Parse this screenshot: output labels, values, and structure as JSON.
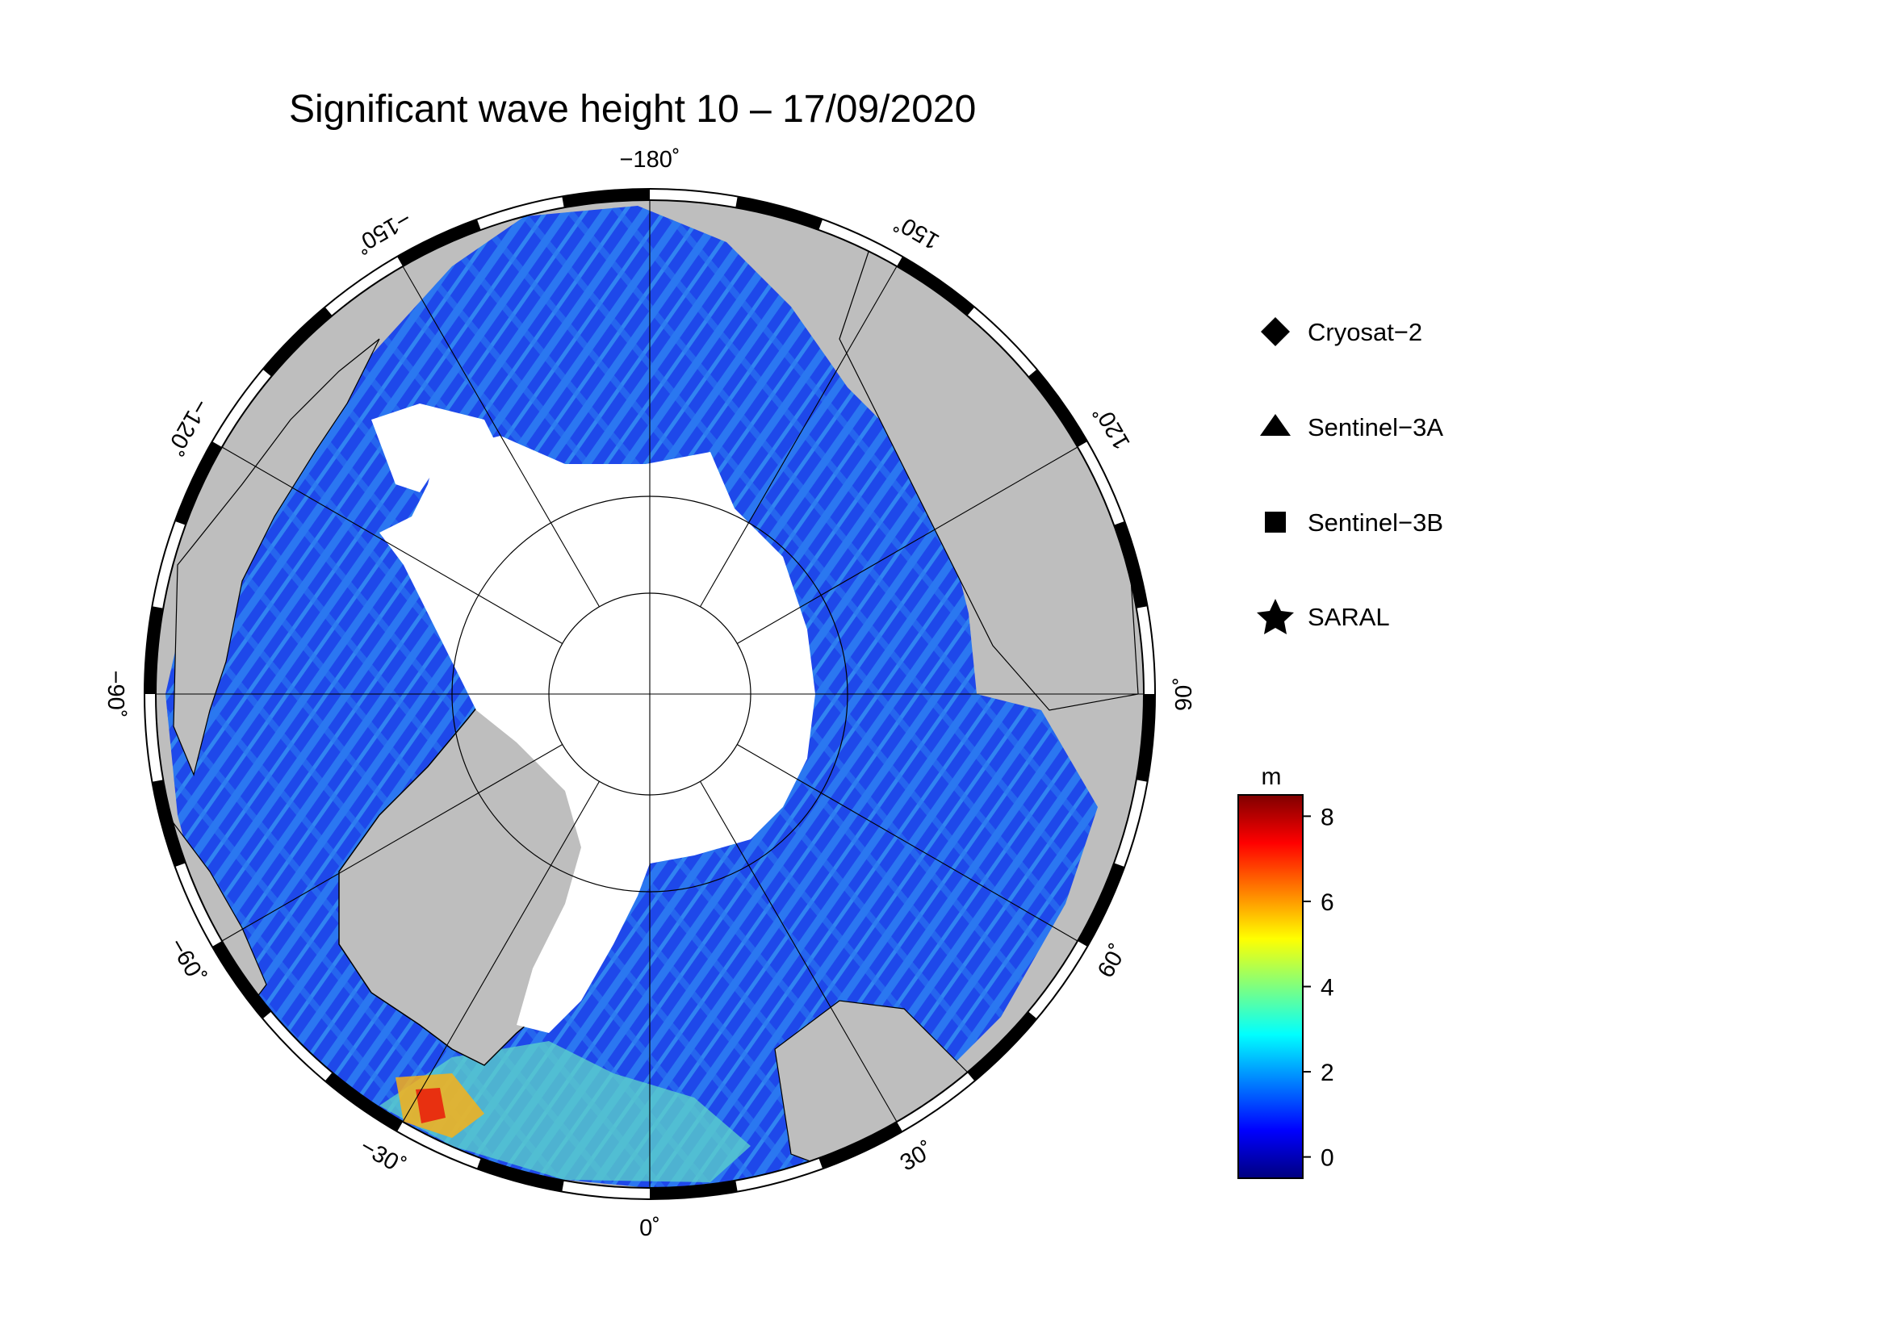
{
  "title": "Significant wave height 10 – 17/09/2020",
  "longitude_labels": [
    {
      "value": 0,
      "text": "0˚"
    },
    {
      "value": 30,
      "text": "30˚"
    },
    {
      "value": 60,
      "text": "60˚"
    },
    {
      "value": 90,
      "text": "90˚"
    },
    {
      "value": 120,
      "text": "120˚"
    },
    {
      "value": 150,
      "text": "150˚"
    },
    {
      "value": -180,
      "text": "−180˚"
    },
    {
      "value": -150,
      "text": "−150˚"
    },
    {
      "value": -120,
      "text": "−120˚"
    },
    {
      "value": -90,
      "text": "−90˚"
    },
    {
      "value": -60,
      "text": "−60˚"
    },
    {
      "value": -30,
      "text": "−30˚"
    }
  ],
  "legend": [
    {
      "label": "Cryosat−2",
      "marker": "diamond-icon"
    },
    {
      "label": "Sentinel−3A",
      "marker": "triangle-icon"
    },
    {
      "label": "Sentinel−3B",
      "marker": "square-icon"
    },
    {
      "label": "SARAL",
      "marker": "star-icon"
    }
  ],
  "colorbar": {
    "unit": "m",
    "min": -0.5,
    "max": 8.5,
    "ticks": [
      {
        "value": 8,
        "text": "8"
      },
      {
        "value": 6,
        "text": "6"
      },
      {
        "value": 4,
        "text": "4"
      },
      {
        "value": 2,
        "text": "2"
      },
      {
        "value": 0,
        "text": "0"
      }
    ],
    "colors": [
      "#00007f",
      "#0000ff",
      "#007fff",
      "#00ffff",
      "#7fff7f",
      "#ffff00",
      "#ff7f00",
      "#ff0000",
      "#7f0000"
    ]
  },
  "colors": {
    "land": "#bebebe",
    "ice": "#ffffff",
    "ocean_low": "#1a3fe6",
    "ocean_mid": "#2a7cf0",
    "frame": "#000000"
  }
}
